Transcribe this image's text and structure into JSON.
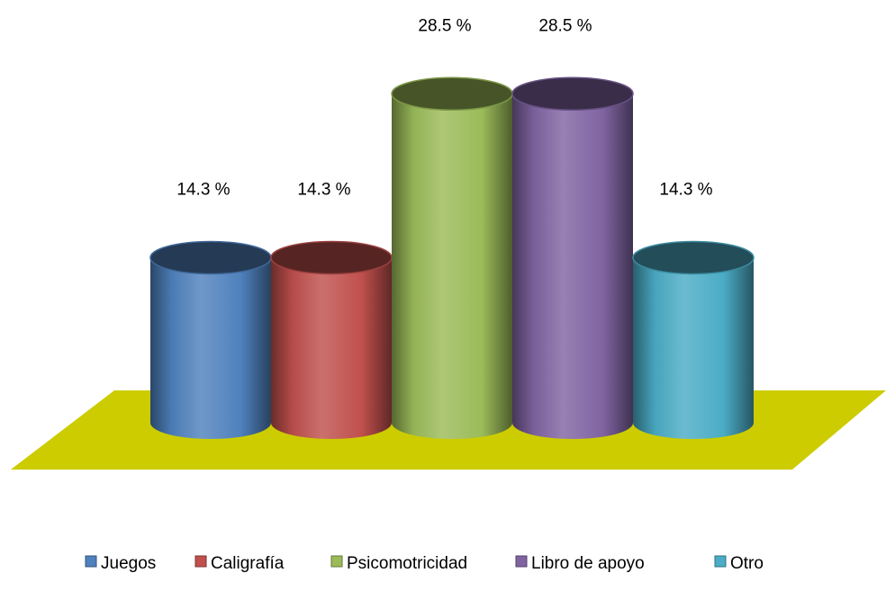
{
  "chart_data": {
    "type": "bar",
    "style": "3d-cylinder",
    "categories": [
      "Juegos",
      "Caligrafía",
      "Psicomotricidad",
      "Libro de apoyo",
      "Otro"
    ],
    "values": [
      14.3,
      14.3,
      28.5,
      28.5,
      14.3
    ],
    "value_labels": [
      "14.3 %",
      "14.3 %",
      "28.5 %",
      "28.5 %",
      "14.3 %"
    ],
    "colors": [
      "#4f81bd",
      "#c0504d",
      "#9bbb59",
      "#8064a2",
      "#4bacc6"
    ],
    "floor_color": "#cccc00",
    "ylim": [
      0,
      30
    ],
    "grid": false,
    "legend_position": "bottom"
  }
}
